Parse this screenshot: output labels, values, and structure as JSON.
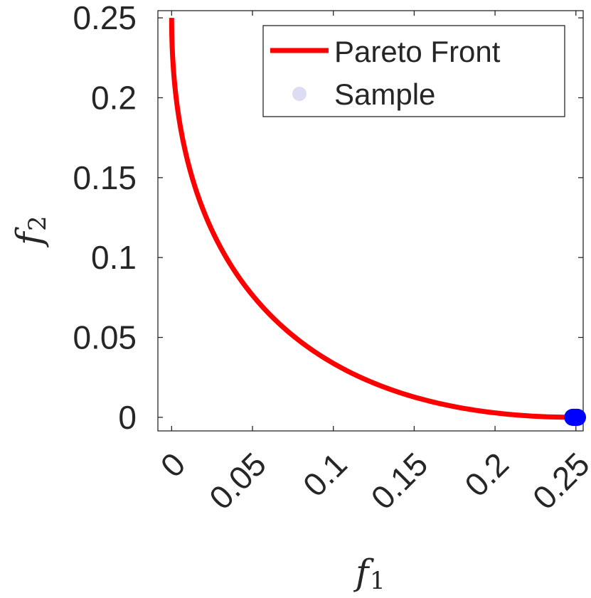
{
  "chart_data": {
    "type": "line",
    "xlabel": "f",
    "xlabel_sub": "1",
    "ylabel": "f",
    "ylabel_sub": "2",
    "xlim": [
      -0.0085,
      0.2545
    ],
    "ylim": [
      -0.0085,
      0.2545
    ],
    "x_ticks": [
      0,
      0.05,
      0.1,
      0.15,
      0.2,
      0.25
    ],
    "x_tick_labels": [
      "0",
      "0.05",
      "0.1",
      "0.15",
      "0.2",
      "0.25"
    ],
    "y_ticks": [
      0,
      0.05,
      0.1,
      0.15,
      0.2,
      0.25
    ],
    "y_tick_labels": [
      "0",
      "0.05",
      "0.1",
      "0.15",
      "0.2",
      "0.25"
    ],
    "grid": false,
    "legend_position": "top-right",
    "series": [
      {
        "name": "Pareto Front",
        "kind": "line",
        "color": "#ff0000",
        "x": [
          0,
          0.0025,
          0.01,
          0.0225,
          0.04,
          0.0625,
          0.09,
          0.1225,
          0.16,
          0.2025,
          0.25
        ],
        "y": [
          0.25,
          0.2025,
          0.16,
          0.1225,
          0.09,
          0.0625,
          0.04,
          0.0225,
          0.01,
          0.0025,
          0
        ]
      },
      {
        "name": "Sample",
        "kind": "scatter",
        "color": "#0000ff",
        "legend_color": "#dcdcf5",
        "x": [
          0.248,
          0.2485,
          0.249,
          0.2495,
          0.25,
          0.2505,
          0.251
        ],
        "y": [
          0,
          0,
          0,
          0,
          0,
          0,
          0
        ]
      }
    ]
  }
}
